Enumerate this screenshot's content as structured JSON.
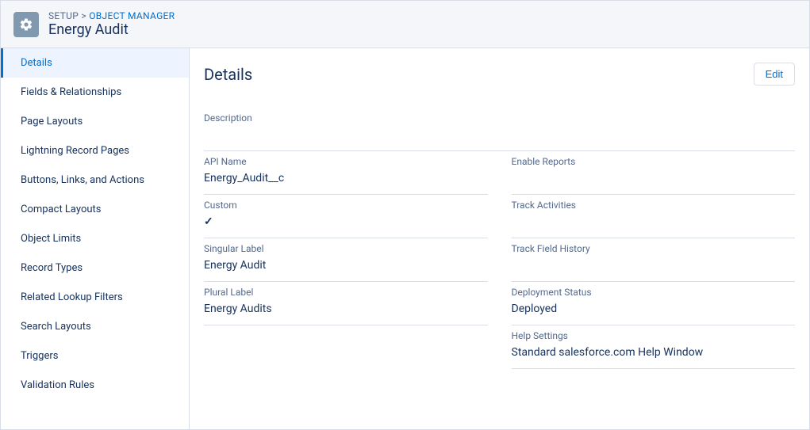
{
  "header": {
    "breadcrumb_setup": "SETUP",
    "breadcrumb_sep": ">",
    "breadcrumb_link": "OBJECT MANAGER",
    "title": "Energy Audit"
  },
  "sidebar": {
    "items": [
      {
        "label": "Details",
        "active": true
      },
      {
        "label": "Fields & Relationships",
        "active": false
      },
      {
        "label": "Page Layouts",
        "active": false
      },
      {
        "label": "Lightning Record Pages",
        "active": false
      },
      {
        "label": "Buttons, Links, and Actions",
        "active": false
      },
      {
        "label": "Compact Layouts",
        "active": false
      },
      {
        "label": "Object Limits",
        "active": false
      },
      {
        "label": "Record Types",
        "active": false
      },
      {
        "label": "Related Lookup Filters",
        "active": false
      },
      {
        "label": "Search Layouts",
        "active": false
      },
      {
        "label": "Triggers",
        "active": false
      },
      {
        "label": "Validation Rules",
        "active": false
      }
    ]
  },
  "main": {
    "title": "Details",
    "edit_label": "Edit",
    "fields": {
      "description": {
        "label": "Description",
        "value": ""
      },
      "api_name": {
        "label": "API Name",
        "value": "Energy_Audit__c"
      },
      "enable_reports": {
        "label": "Enable Reports",
        "value": ""
      },
      "custom": {
        "label": "Custom",
        "value_is_check": true
      },
      "track_activities": {
        "label": "Track Activities",
        "value": ""
      },
      "singular_label": {
        "label": "Singular Label",
        "value": "Energy Audit"
      },
      "track_field_history": {
        "label": "Track Field History",
        "value": ""
      },
      "plural_label": {
        "label": "Plural Label",
        "value": "Energy Audits"
      },
      "deployment_status": {
        "label": "Deployment Status",
        "value": "Deployed"
      },
      "help_settings": {
        "label": "Help Settings",
        "value": "Standard salesforce.com Help Window"
      }
    }
  },
  "colors": {
    "link": "#0070d2",
    "border": "#d8dde6",
    "label": "#54698d",
    "text": "#16325c",
    "header_bg": "#f4f6f9",
    "active_bg": "#eef4ff",
    "icon_bg": "#8199af"
  }
}
